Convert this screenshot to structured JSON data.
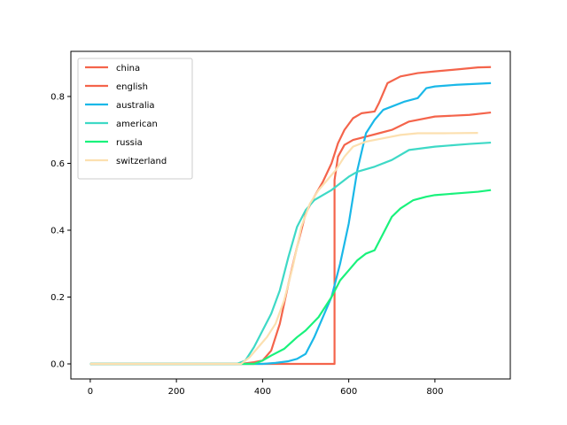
{
  "chart_data": {
    "type": "line",
    "title": "",
    "xlabel": "",
    "ylabel": "",
    "xlim": [
      -45,
      975
    ],
    "ylim": [
      -0.045,
      0.935
    ],
    "x_ticks": [
      0,
      200,
      400,
      600,
      800
    ],
    "y_ticks": [
      0.0,
      0.2,
      0.4,
      0.6,
      0.8
    ],
    "x_tick_labels": [
      "0",
      "200",
      "400",
      "600",
      "800"
    ],
    "y_tick_labels": [
      "0.0",
      "0.2",
      "0.4",
      "0.6",
      "0.8"
    ],
    "grid": false,
    "legend_position": "upper-left",
    "series": [
      {
        "name": "china",
        "color": "#f4644b",
        "points": [
          [
            0,
            0
          ],
          [
            380,
            0
          ],
          [
            400,
            0
          ],
          [
            560,
            0
          ],
          [
            567,
            0
          ],
          [
            567,
            0.55
          ],
          [
            575,
            0.62
          ],
          [
            590,
            0.655
          ],
          [
            610,
            0.67
          ],
          [
            640,
            0.68
          ],
          [
            670,
            0.69
          ],
          [
            700,
            0.7
          ],
          [
            740,
            0.725
          ],
          [
            800,
            0.74
          ],
          [
            880,
            0.745
          ],
          [
            930,
            0.752
          ]
        ]
      },
      {
        "name": "english",
        "color": "#f4644b",
        "points": [
          [
            0,
            0
          ],
          [
            350,
            0
          ],
          [
            380,
            0.005
          ],
          [
            400,
            0.01
          ],
          [
            420,
            0.04
          ],
          [
            440,
            0.12
          ],
          [
            460,
            0.24
          ],
          [
            480,
            0.35
          ],
          [
            500,
            0.45
          ],
          [
            520,
            0.5
          ],
          [
            540,
            0.545
          ],
          [
            560,
            0.6
          ],
          [
            575,
            0.66
          ],
          [
            590,
            0.7
          ],
          [
            610,
            0.735
          ],
          [
            630,
            0.75
          ],
          [
            660,
            0.755
          ],
          [
            670,
            0.78
          ],
          [
            690,
            0.84
          ],
          [
            720,
            0.86
          ],
          [
            760,
            0.87
          ],
          [
            800,
            0.875
          ],
          [
            860,
            0.882
          ],
          [
            900,
            0.887
          ],
          [
            930,
            0.888
          ]
        ]
      },
      {
        "name": "australia",
        "color": "#1ab8e8",
        "points": [
          [
            0,
            0
          ],
          [
            400,
            0
          ],
          [
            430,
            0.003
          ],
          [
            460,
            0.008
          ],
          [
            480,
            0.015
          ],
          [
            500,
            0.03
          ],
          [
            520,
            0.08
          ],
          [
            540,
            0.14
          ],
          [
            560,
            0.2
          ],
          [
            580,
            0.3
          ],
          [
            600,
            0.42
          ],
          [
            620,
            0.58
          ],
          [
            640,
            0.69
          ],
          [
            660,
            0.73
          ],
          [
            680,
            0.76
          ],
          [
            700,
            0.77
          ],
          [
            730,
            0.785
          ],
          [
            760,
            0.795
          ],
          [
            780,
            0.825
          ],
          [
            800,
            0.83
          ],
          [
            850,
            0.835
          ],
          [
            930,
            0.84
          ]
        ]
      },
      {
        "name": "american",
        "color": "#3ed9c6",
        "points": [
          [
            0,
            0
          ],
          [
            340,
            0
          ],
          [
            360,
            0.01
          ],
          [
            380,
            0.05
          ],
          [
            400,
            0.1
          ],
          [
            420,
            0.15
          ],
          [
            440,
            0.22
          ],
          [
            460,
            0.32
          ],
          [
            480,
            0.41
          ],
          [
            500,
            0.46
          ],
          [
            520,
            0.49
          ],
          [
            540,
            0.505
          ],
          [
            560,
            0.52
          ],
          [
            580,
            0.54
          ],
          [
            600,
            0.56
          ],
          [
            620,
            0.575
          ],
          [
            660,
            0.59
          ],
          [
            700,
            0.61
          ],
          [
            740,
            0.64
          ],
          [
            800,
            0.65
          ],
          [
            880,
            0.658
          ],
          [
            930,
            0.662
          ]
        ]
      },
      {
        "name": "russia",
        "color": "#19f27c",
        "points": [
          [
            0,
            0
          ],
          [
            380,
            0
          ],
          [
            400,
            0.01
          ],
          [
            420,
            0.025
          ],
          [
            450,
            0.045
          ],
          [
            480,
            0.08
          ],
          [
            500,
            0.1
          ],
          [
            530,
            0.14
          ],
          [
            560,
            0.2
          ],
          [
            580,
            0.25
          ],
          [
            600,
            0.28
          ],
          [
            620,
            0.31
          ],
          [
            640,
            0.33
          ],
          [
            660,
            0.34
          ],
          [
            680,
            0.39
          ],
          [
            700,
            0.44
          ],
          [
            720,
            0.465
          ],
          [
            750,
            0.49
          ],
          [
            780,
            0.5
          ],
          [
            800,
            0.505
          ],
          [
            850,
            0.51
          ],
          [
            900,
            0.515
          ],
          [
            930,
            0.52
          ]
        ]
      },
      {
        "name": "switzerland",
        "color": "#fce0b0",
        "points": [
          [
            0,
            0
          ],
          [
            350,
            0
          ],
          [
            370,
            0.02
          ],
          [
            390,
            0.05
          ],
          [
            410,
            0.08
          ],
          [
            430,
            0.12
          ],
          [
            450,
            0.19
          ],
          [
            470,
            0.29
          ],
          [
            490,
            0.41
          ],
          [
            510,
            0.48
          ],
          [
            530,
            0.52
          ],
          [
            550,
            0.55
          ],
          [
            570,
            0.58
          ],
          [
            590,
            0.62
          ],
          [
            610,
            0.65
          ],
          [
            640,
            0.665
          ],
          [
            680,
            0.675
          ],
          [
            720,
            0.685
          ],
          [
            760,
            0.69
          ],
          [
            820,
            0.69
          ],
          [
            900,
            0.691
          ]
        ]
      }
    ]
  }
}
